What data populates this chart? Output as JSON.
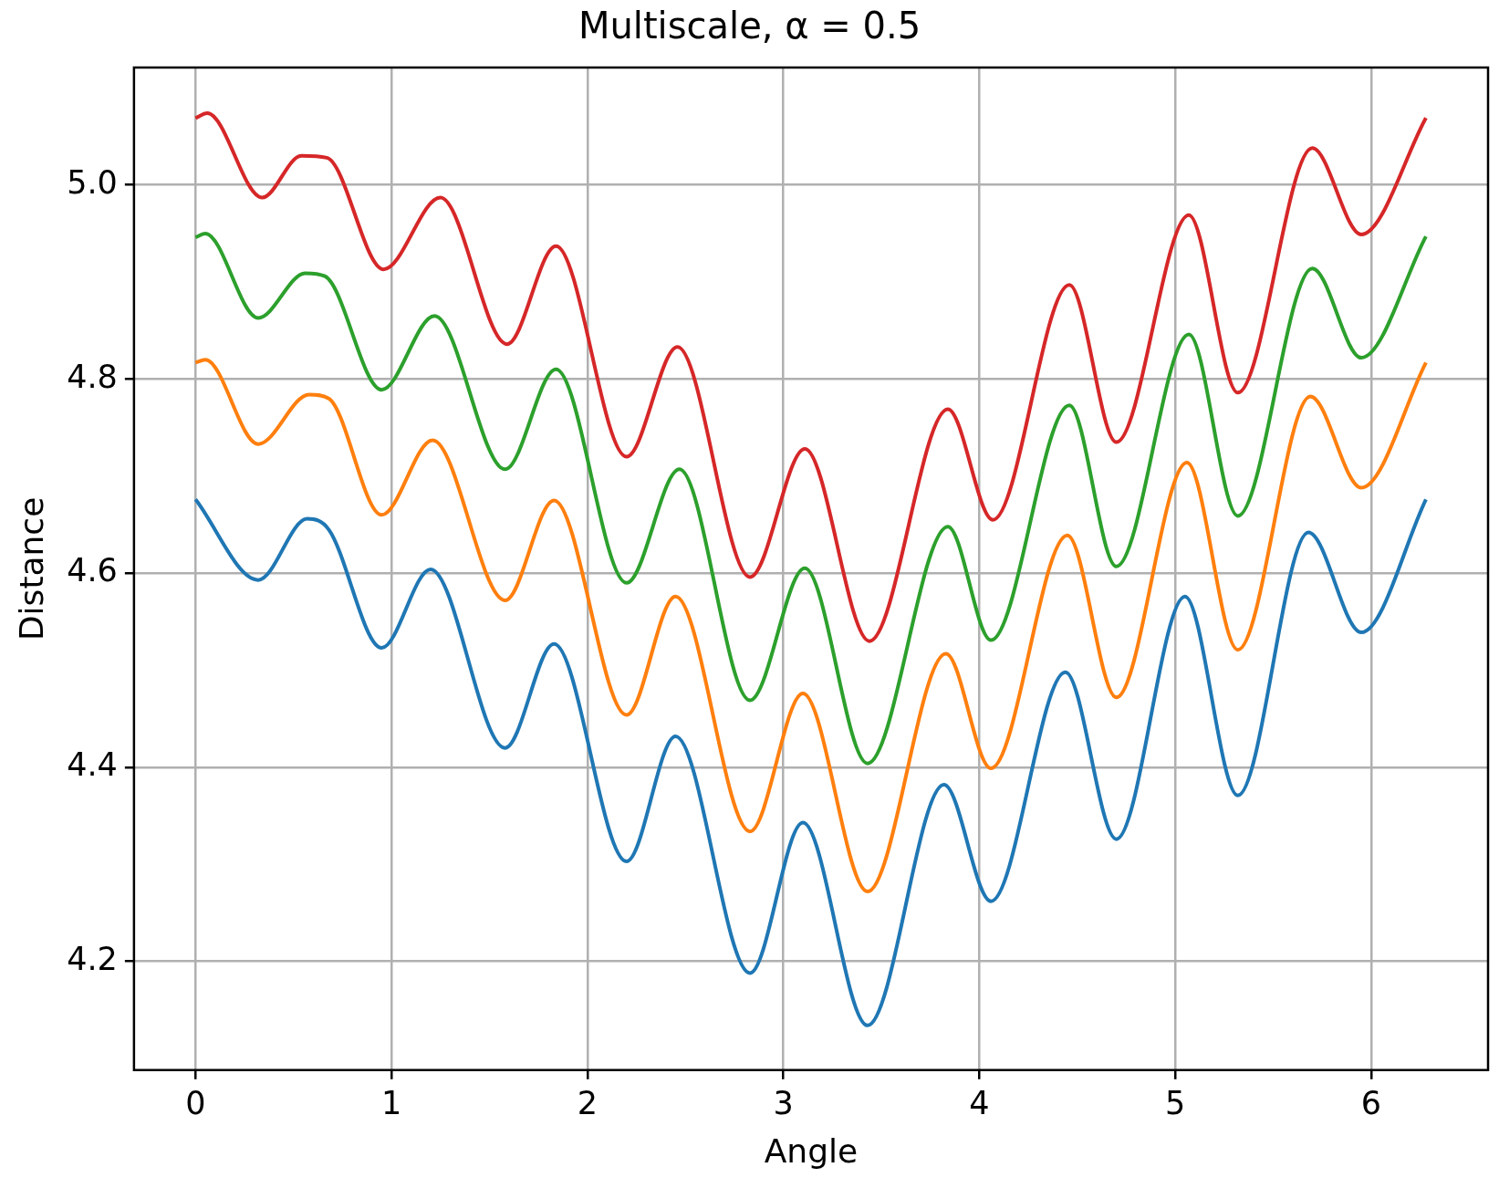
{
  "chart_data": {
    "type": "line",
    "title": "Multiscale, α = 0.5",
    "xlabel": "Angle",
    "ylabel": "Distance",
    "xlim": [
      -0.314,
      6.597
    ],
    "ylim": [
      4.088,
      5.121
    ],
    "xticks": [
      0,
      1,
      2,
      3,
      4,
      5,
      6
    ],
    "yticks": [
      {
        "value": 4.2,
        "label": "4.2"
      },
      {
        "value": 4.4,
        "label": "4.4"
      },
      {
        "value": 4.6,
        "label": "4.6"
      },
      {
        "value": 4.8,
        "label": "4.8"
      },
      {
        "value": 5.0,
        "label": "5.0"
      }
    ],
    "grid": true,
    "legend": false,
    "marker": "none",
    "line_style": "solid",
    "series": [
      {
        "color": "#1f77b4",
        "x": [
          0,
          0.32,
          0.57,
          0.68,
          0.95,
          1.2,
          1.58,
          1.83,
          2.2,
          2.45,
          2.83,
          3.1,
          3.43,
          3.82,
          4.06,
          4.44,
          4.7,
          5.05,
          5.32,
          5.68,
          5.95,
          6.28
        ],
        "values": [
          4.676,
          4.593,
          4.656,
          4.645,
          4.523,
          4.604,
          4.42,
          4.527,
          4.303,
          4.432,
          4.188,
          4.343,
          4.134,
          4.382,
          4.262,
          4.498,
          4.326,
          4.576,
          4.371,
          4.642,
          4.539,
          4.676
        ]
      },
      {
        "color": "#ff7f0e",
        "x": [
          0,
          0.05,
          0.32,
          0.58,
          0.68,
          0.95,
          1.21,
          1.58,
          1.83,
          2.2,
          2.45,
          2.83,
          3.1,
          3.43,
          3.83,
          4.06,
          4.45,
          4.7,
          5.06,
          5.32,
          5.69,
          5.95,
          6.28
        ],
        "values": [
          4.817,
          4.82,
          4.733,
          4.784,
          4.78,
          4.66,
          4.737,
          4.572,
          4.675,
          4.454,
          4.576,
          4.334,
          4.476,
          4.272,
          4.517,
          4.399,
          4.639,
          4.472,
          4.714,
          4.521,
          4.782,
          4.688,
          4.817
        ]
      },
      {
        "color": "#2ca02c",
        "x": [
          0,
          0.05,
          0.32,
          0.56,
          0.66,
          0.95,
          1.22,
          1.58,
          1.84,
          2.2,
          2.47,
          2.83,
          3.11,
          3.43,
          3.84,
          4.06,
          4.46,
          4.7,
          5.07,
          5.32,
          5.7,
          5.95,
          6.28
        ],
        "values": [
          4.946,
          4.95,
          4.863,
          4.909,
          4.906,
          4.789,
          4.865,
          4.707,
          4.81,
          4.59,
          4.707,
          4.469,
          4.605,
          4.404,
          4.648,
          4.531,
          4.773,
          4.607,
          4.846,
          4.659,
          4.914,
          4.822,
          4.947
        ]
      },
      {
        "color": "#d62728",
        "x": [
          0,
          0.06,
          0.34,
          0.54,
          0.67,
          0.96,
          1.25,
          1.59,
          1.84,
          2.2,
          2.46,
          2.83,
          3.11,
          3.44,
          3.84,
          4.07,
          4.46,
          4.7,
          5.07,
          5.32,
          5.7,
          5.95,
          6.28
        ],
        "values": [
          5.069,
          5.074,
          4.987,
          5.03,
          5.028,
          4.913,
          4.987,
          4.836,
          4.937,
          4.72,
          4.833,
          4.596,
          4.728,
          4.53,
          4.769,
          4.655,
          4.897,
          4.735,
          4.969,
          4.786,
          5.038,
          4.949,
          5.069
        ]
      }
    ]
  }
}
